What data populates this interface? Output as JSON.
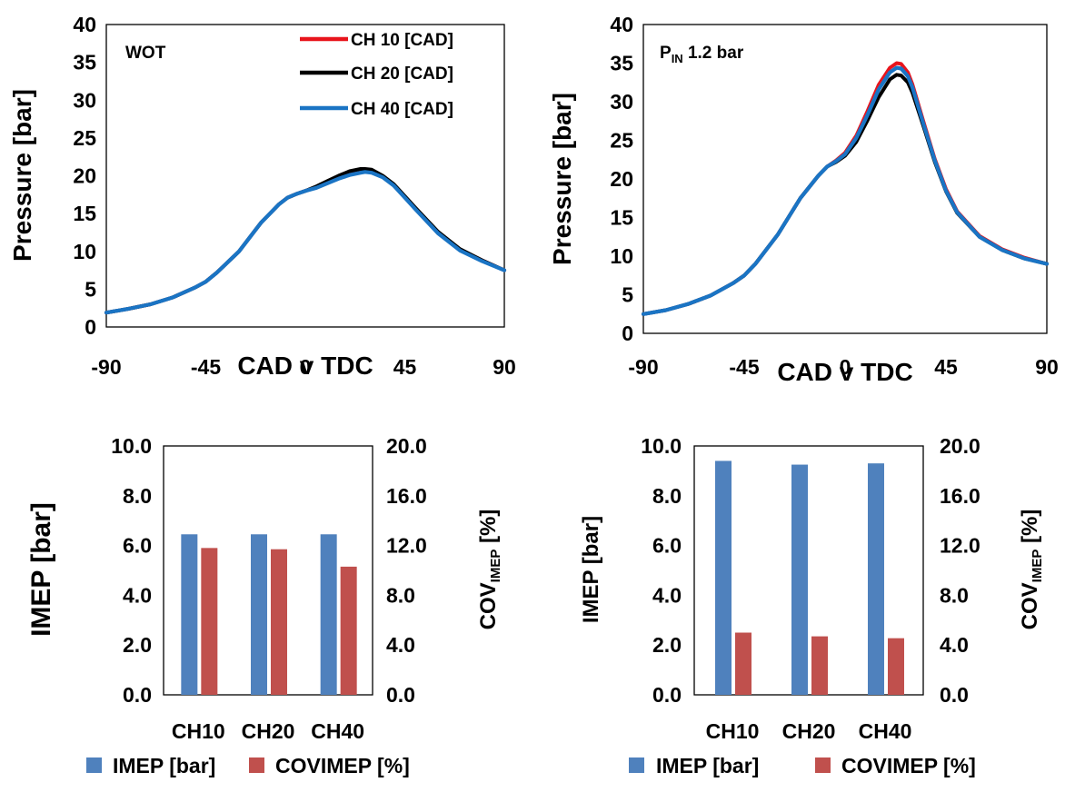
{
  "chart_data": [
    {
      "type": "line",
      "annotation": "WOT",
      "xlabel": "CAD v TDC",
      "ylabel": "Pressure [bar]",
      "xlim": [
        -90,
        90
      ],
      "ylim": [
        0,
        40
      ],
      "xticks": [
        "-90",
        "-45",
        "0",
        "45",
        "90"
      ],
      "yticks": [
        "0",
        "5",
        "10",
        "15",
        "20",
        "25",
        "30",
        "35",
        "40"
      ],
      "legend": "top-right",
      "series": [
        {
          "name": "CH 10 [CAD]",
          "color": "#e8141c",
          "x": [
            -90,
            -80,
            -70,
            -60,
            -50,
            -45,
            -40,
            -30,
            -20,
            -12,
            -8,
            -4,
            0,
            5,
            10,
            15,
            20,
            25,
            27,
            30,
            35,
            40,
            45,
            50,
            60,
            70,
            80,
            90
          ],
          "y": [
            1.9,
            2.4,
            3.0,
            3.9,
            5.2,
            6.0,
            7.2,
            10.0,
            13.8,
            16.2,
            17.1,
            17.6,
            18.0,
            18.5,
            19.2,
            19.8,
            20.3,
            20.6,
            20.7,
            20.6,
            19.9,
            18.8,
            17.2,
            15.6,
            12.5,
            10.2,
            8.8,
            7.5
          ]
        },
        {
          "name": "CH 20 [CAD]",
          "color": "#000000",
          "x": [
            -90,
            -80,
            -70,
            -60,
            -50,
            -45,
            -40,
            -30,
            -20,
            -12,
            -8,
            -4,
            0,
            5,
            10,
            15,
            20,
            25,
            27,
            30,
            35,
            40,
            45,
            50,
            60,
            70,
            80,
            90
          ],
          "y": [
            1.9,
            2.4,
            3.0,
            3.9,
            5.2,
            6.0,
            7.2,
            10.0,
            13.8,
            16.2,
            17.1,
            17.6,
            18.0,
            18.6,
            19.3,
            20.0,
            20.6,
            20.9,
            20.9,
            20.8,
            20.0,
            18.9,
            17.3,
            15.7,
            12.6,
            10.3,
            8.8,
            7.5
          ]
        },
        {
          "name": "CH 40 [CAD]",
          "color": "#1a74c4",
          "x": [
            -90,
            -80,
            -70,
            -60,
            -50,
            -45,
            -40,
            -30,
            -20,
            -12,
            -8,
            -4,
            0,
            5,
            10,
            15,
            20,
            25,
            27,
            30,
            35,
            40,
            45,
            50,
            60,
            70,
            80,
            90
          ],
          "y": [
            1.9,
            2.4,
            3.0,
            3.9,
            5.2,
            6.0,
            7.2,
            10.0,
            13.8,
            16.2,
            17.1,
            17.6,
            18.0,
            18.4,
            19.0,
            19.6,
            20.1,
            20.4,
            20.5,
            20.4,
            19.8,
            18.7,
            17.1,
            15.5,
            12.4,
            10.1,
            8.7,
            7.5
          ]
        }
      ]
    },
    {
      "type": "line",
      "annotation": {
        "main": "P",
        "sub": "IN",
        "rest": " 1.2 bar"
      },
      "xlabel": "CAD v TDC",
      "ylabel": "Pressure [bar]",
      "xlim": [
        -90,
        90
      ],
      "ylim": [
        0,
        40
      ],
      "xticks": [
        "-90",
        "-45",
        "0",
        "45",
        "90"
      ],
      "yticks": [
        "0",
        "5",
        "10",
        "15",
        "20",
        "25",
        "30",
        "35",
        "40"
      ],
      "series": [
        {
          "name": "CH 10 [CAD]",
          "color": "#e8141c",
          "x": [
            -90,
            -80,
            -70,
            -60,
            -50,
            -45,
            -40,
            -30,
            -20,
            -12,
            -8,
            -4,
            0,
            5,
            10,
            15,
            20,
            23,
            25,
            28,
            30,
            35,
            40,
            45,
            50,
            60,
            70,
            80,
            90
          ],
          "y": [
            2.5,
            3.0,
            3.8,
            4.9,
            6.5,
            7.5,
            9.0,
            12.8,
            17.5,
            20.4,
            21.6,
            22.4,
            23.4,
            25.6,
            28.8,
            32.2,
            34.4,
            35.0,
            34.9,
            33.8,
            32.3,
            27.4,
            22.6,
            18.7,
            15.8,
            12.6,
            10.9,
            9.8,
            9.0
          ]
        },
        {
          "name": "CH 20 [CAD]",
          "color": "#000000",
          "x": [
            -90,
            -80,
            -70,
            -60,
            -50,
            -45,
            -40,
            -30,
            -20,
            -12,
            -8,
            -4,
            0,
            5,
            10,
            15,
            20,
            23,
            25,
            28,
            30,
            35,
            40,
            45,
            50,
            60,
            70,
            80,
            90
          ],
          "y": [
            2.5,
            3.0,
            3.8,
            4.9,
            6.5,
            7.5,
            9.0,
            12.8,
            17.5,
            20.4,
            21.6,
            22.2,
            23.0,
            24.8,
            27.6,
            30.6,
            32.9,
            33.5,
            33.4,
            32.5,
            31.2,
            26.8,
            22.2,
            18.4,
            15.6,
            12.5,
            10.8,
            9.7,
            9.0
          ]
        },
        {
          "name": "CH 40 [CAD]",
          "color": "#1a74c4",
          "x": [
            -90,
            -80,
            -70,
            -60,
            -50,
            -45,
            -40,
            -30,
            -20,
            -12,
            -8,
            -4,
            0,
            5,
            10,
            15,
            20,
            23,
            25,
            28,
            30,
            35,
            40,
            45,
            50,
            60,
            70,
            80,
            90
          ],
          "y": [
            2.5,
            3.0,
            3.8,
            4.9,
            6.5,
            7.5,
            9.0,
            12.8,
            17.5,
            20.4,
            21.6,
            22.3,
            23.2,
            25.3,
            28.3,
            31.6,
            33.8,
            34.4,
            34.3,
            33.3,
            31.9,
            27.1,
            22.4,
            18.5,
            15.7,
            12.5,
            10.8,
            9.7,
            9.0
          ]
        }
      ]
    },
    {
      "type": "bar",
      "categories": [
        "CH10",
        "CH20",
        "CH40"
      ],
      "ylabel": "IMEP [bar]",
      "ylabel2": {
        "main": "COV",
        "sub": "IMEP",
        "rest": " [%]"
      },
      "ylim": [
        0,
        10
      ],
      "ylim2": [
        0,
        20
      ],
      "yticks": [
        "0.0",
        "2.0",
        "4.0",
        "6.0",
        "8.0",
        "10.0"
      ],
      "yticks2": [
        "0.0",
        "4.0",
        "8.0",
        "12.0",
        "16.0",
        "20.0"
      ],
      "legend": "bottom",
      "series": [
        {
          "name": "IMEP [bar]",
          "axis": "left",
          "color": "#4f81bd",
          "values": [
            6.45,
            6.45,
            6.45
          ]
        },
        {
          "name": "COVIMEP [%]",
          "axis": "right",
          "color": "#c0504d",
          "values": [
            11.8,
            11.7,
            10.3
          ]
        }
      ]
    },
    {
      "type": "bar",
      "categories": [
        "CH10",
        "CH20",
        "CH40"
      ],
      "ylabel": "IMEP [bar]",
      "ylabel2": {
        "main": "COV",
        "sub": "IMEP",
        "rest": " [%]"
      },
      "ylim": [
        0,
        10
      ],
      "ylim2": [
        0,
        20
      ],
      "yticks": [
        "0.0",
        "2.0",
        "4.0",
        "6.0",
        "8.0",
        "10.0"
      ],
      "yticks2": [
        "0.0",
        "4.0",
        "8.0",
        "12.0",
        "16.0",
        "20.0"
      ],
      "legend": "bottom",
      "series": [
        {
          "name": "IMEP [bar]",
          "axis": "left",
          "color": "#4f81bd",
          "values": [
            9.4,
            9.25,
            9.3
          ]
        },
        {
          "name": "COVIMEP [%]",
          "axis": "right",
          "color": "#c0504d",
          "values": [
            5.0,
            4.7,
            4.55
          ]
        }
      ]
    }
  ]
}
